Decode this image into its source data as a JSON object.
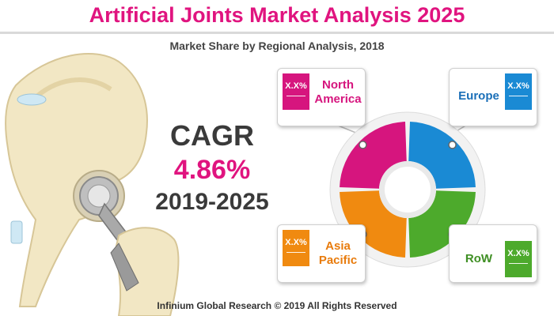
{
  "header": {
    "title": "Artificial Joints Market Analysis 2025",
    "subtitle": "Market Share by Regional Analysis, 2018"
  },
  "cagr": {
    "label": "CAGR",
    "value": "4.86%",
    "period": "2019-2025"
  },
  "footer": "Infinium Global Research © 2019 All Rights Reserved",
  "colors": {
    "title": "#e0147f",
    "north_america": "#d6157e",
    "europe": "#1a8ad4",
    "row": "#4daa2c",
    "asia_pacific": "#f08a10"
  },
  "chart_data": {
    "type": "pie",
    "title": "Market Share by Regional Analysis, 2018",
    "segments": [
      {
        "name": "North America",
        "value_label": "X.X%",
        "color": "#d6157e"
      },
      {
        "name": "Europe",
        "value_label": "X.X%",
        "color": "#1a8ad4"
      },
      {
        "name": "RoW",
        "value_label": "X.X%",
        "color": "#4daa2c"
      },
      {
        "name": "Asia Pacific",
        "value_label": "X.X%",
        "color": "#f08a10"
      }
    ]
  },
  "regions": {
    "north_america": {
      "line1": "North",
      "line2": "America",
      "value": "X.X%"
    },
    "europe": {
      "line1": "Europe",
      "value": "X.X%"
    },
    "asia_pacific": {
      "line1": "Asia",
      "line2": "Pacific",
      "value": "X.X%"
    },
    "row": {
      "line1": "RoW",
      "value": "X.X%"
    }
  }
}
